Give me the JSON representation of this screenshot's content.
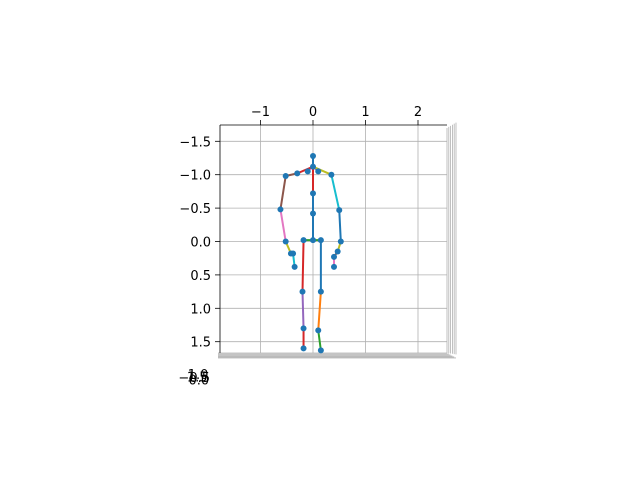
{
  "chart_data": {
    "type": "scatter",
    "projection": "3d",
    "title": "",
    "grid": true,
    "x_ticks": [
      -1,
      0,
      1,
      2
    ],
    "y_ticks": [
      -1.5,
      -1.0,
      -0.5,
      0.0,
      0.5,
      1.0,
      1.5
    ],
    "z_tick_labels": [
      "-0.5",
      "0.0",
      "1.0",
      "1.5"
    ],
    "xlim": [
      -1.8,
      2.5
    ],
    "ylim": [
      -1.8,
      1.75
    ],
    "points": [
      {
        "x": 0.0,
        "y": -1.28
      },
      {
        "x": 0.0,
        "y": -1.12
      },
      {
        "x": -0.1,
        "y": -1.05
      },
      {
        "x": 0.1,
        "y": -1.05
      },
      {
        "x": -0.3,
        "y": -1.02
      },
      {
        "x": 0.35,
        "y": -1.0
      },
      {
        "x": -0.52,
        "y": -0.98
      },
      {
        "x": 0.0,
        "y": -0.72
      },
      {
        "x": -0.62,
        "y": -0.48
      },
      {
        "x": 0.5,
        "y": -0.47
      },
      {
        "x": 0.0,
        "y": -0.42
      },
      {
        "x": -0.52,
        "y": 0.0
      },
      {
        "x": -0.18,
        "y": -0.02
      },
      {
        "x": 0.0,
        "y": -0.02
      },
      {
        "x": 0.15,
        "y": -0.02
      },
      {
        "x": 0.53,
        "y": 0.0
      },
      {
        "x": -0.42,
        "y": 0.18
      },
      {
        "x": -0.38,
        "y": 0.18
      },
      {
        "x": 0.47,
        "y": 0.15
      },
      {
        "x": 0.4,
        "y": 0.23
      },
      {
        "x": -0.35,
        "y": 0.38
      },
      {
        "x": 0.4,
        "y": 0.38
      },
      {
        "x": -0.2,
        "y": 0.75
      },
      {
        "x": 0.15,
        "y": 0.75
      },
      {
        "x": -0.18,
        "y": 1.3
      },
      {
        "x": 0.1,
        "y": 1.33
      },
      {
        "x": -0.18,
        "y": 1.6
      },
      {
        "x": 0.15,
        "y": 1.63
      }
    ],
    "segments": [
      {
        "from": 0,
        "to": 1,
        "color": "#1f77b4"
      },
      {
        "from": 1,
        "to": 2,
        "color": "#e377c2"
      },
      {
        "from": 1,
        "to": 3,
        "color": "#9467bd"
      },
      {
        "from": 1,
        "to": 4,
        "color": "#d62728"
      },
      {
        "from": 1,
        "to": 5,
        "color": "#bcbd22"
      },
      {
        "from": 4,
        "to": 6,
        "color": "#8c564b"
      },
      {
        "from": 5,
        "to": 9,
        "color": "#17becf"
      },
      {
        "from": 1,
        "to": 7,
        "color": "#d62728"
      },
      {
        "from": 6,
        "to": 8,
        "color": "#8c564b"
      },
      {
        "from": 8,
        "to": 11,
        "color": "#e377c2"
      },
      {
        "from": 9,
        "to": 15,
        "color": "#1f77b4"
      },
      {
        "from": 7,
        "to": 10,
        "color": "#1f77b4"
      },
      {
        "from": 10,
        "to": 13,
        "color": "#1f77b4"
      },
      {
        "from": 12,
        "to": 13,
        "color": "#2ca02c"
      },
      {
        "from": 13,
        "to": 14,
        "color": "#2ca02c"
      },
      {
        "from": 11,
        "to": 16,
        "color": "#bcbd22"
      },
      {
        "from": 16,
        "to": 17,
        "color": "#9467bd"
      },
      {
        "from": 17,
        "to": 20,
        "color": "#17becf"
      },
      {
        "from": 15,
        "to": 18,
        "color": "#bcbd22"
      },
      {
        "from": 18,
        "to": 19,
        "color": "#8c564b"
      },
      {
        "from": 19,
        "to": 21,
        "color": "#e377c2"
      },
      {
        "from": 12,
        "to": 22,
        "color": "#d62728"
      },
      {
        "from": 14,
        "to": 23,
        "color": "#1f77b4"
      },
      {
        "from": 22,
        "to": 24,
        "color": "#9467bd"
      },
      {
        "from": 23,
        "to": 25,
        "color": "#ff7f0e"
      },
      {
        "from": 24,
        "to": 26,
        "color": "#d62728"
      },
      {
        "from": 25,
        "to": 27,
        "color": "#2ca02c"
      }
    ],
    "marker_color": "#1f77b4"
  }
}
